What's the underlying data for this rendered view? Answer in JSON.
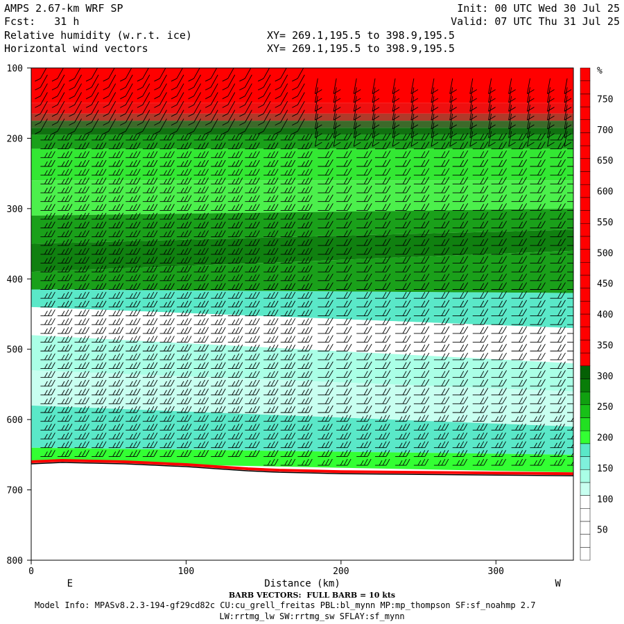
{
  "header": {
    "model": "AMPS 2.67-km WRF SP",
    "fcst": "Fcst:   31 h",
    "init": "Init: 00 UTC Wed 30 Jul 25",
    "valid": "Valid: 07 UTC Thu 31 Jul 25",
    "field1": "Relative humidity (w.r.t. ice)",
    "field2": "Horizontal wind vectors",
    "xy1": "XY= 269.1,195.5 to 398.9,195.5",
    "xy2": "XY= 269.1,195.5 to 398.9,195.5"
  },
  "footer": {
    "barb": "BARB VECTORS:  FULL BARB = 10 kts",
    "model_info": "Model Info: MPASv8.2.3-194-gf29cd82c CU:cu_grell_freitas PBL:bl_mynn MP:mp_thompson SF:sf_noahmp 2.7",
    "model_info2": "LW:rrtmg_lw SW:rrtmg_sw SFLAY:sf_mynn"
  },
  "chart_data": {
    "type": "heatmap",
    "title": "Relative humidity (w.r.t. ice)",
    "xlabel": "Distance (km)",
    "ylabel": "",
    "xlim": [
      0,
      350
    ],
    "ylim": [
      100,
      800
    ],
    "x_ticks": [
      0,
      100,
      200,
      300
    ],
    "y_ticks": [
      100,
      200,
      300,
      400,
      500,
      600,
      700,
      800
    ],
    "x_end_labels": [
      "E",
      "W"
    ],
    "colorbar": {
      "unit": "%",
      "levels": [
        50,
        100,
        150,
        200,
        250,
        300,
        350,
        400,
        450,
        500,
        550,
        600,
        650,
        700,
        750
      ],
      "colors": [
        "#ffffff",
        "#ffffff",
        "#ffffff",
        "#ffffff",
        "#ffffff",
        "#c8fff0",
        "#aaffe6",
        "#7ff0dc",
        "#5ae8c8",
        "#33ff33",
        "#22e022",
        "#18c018",
        "#10a010",
        "#087d08",
        "#056005",
        "#ff0000",
        "#ff0000",
        "#ff0000",
        "#ff0000",
        "#ff0000",
        "#ff0000",
        "#ff0000",
        "#ff0000",
        "#ff0000",
        "#ff0000",
        "#ff0000",
        "#ff0000",
        "#ff0000",
        "#ff0000",
        "#ff0000",
        "#ff0000",
        "#ff0000",
        "#ff0000",
        "#ff0000",
        "#ff0000",
        "#ff0000",
        "#ff0000",
        "#ff0000"
      ]
    },
    "rh_profile": {
      "pressure": [
        100,
        150,
        165,
        175,
        185,
        195,
        215,
        260,
        310,
        350,
        390,
        415,
        440,
        480,
        530,
        580,
        640,
        660
      ],
      "west_pressure": [
        100,
        150,
        165,
        175,
        185,
        195,
        215,
        260,
        300,
        330,
        360,
        420,
        470,
        520,
        560,
        610,
        650,
        675
      ],
      "colors": [
        "#ff0000",
        "#ee1010",
        "#b03a2a",
        "#3c6a2a",
        "#107010",
        "#1aa01a",
        "#33e833",
        "#4cf04c",
        "#1aa01a",
        "#108010",
        "#1aa01a",
        "#5ae8c8",
        "#ffffff",
        "#aaffe6",
        "#c8fff0",
        "#5ae8c8",
        "#33ff33",
        "#ff0000"
      ]
    },
    "terrain": {
      "x": [
        0,
        20,
        40,
        60,
        80,
        100,
        120,
        140,
        160,
        180,
        200,
        250,
        300,
        350
      ],
      "pressure": [
        660,
        658,
        659,
        660,
        662,
        664,
        667,
        670,
        672,
        673,
        674,
        675,
        676,
        677
      ]
    },
    "barb_columns_km": [
      6,
      17,
      28,
      39,
      50,
      61,
      72,
      83,
      94,
      105,
      116,
      127,
      138,
      150,
      161,
      172,
      185,
      197,
      210,
      222,
      235,
      247,
      260,
      272,
      285,
      297,
      310,
      322,
      335,
      346
    ]
  }
}
